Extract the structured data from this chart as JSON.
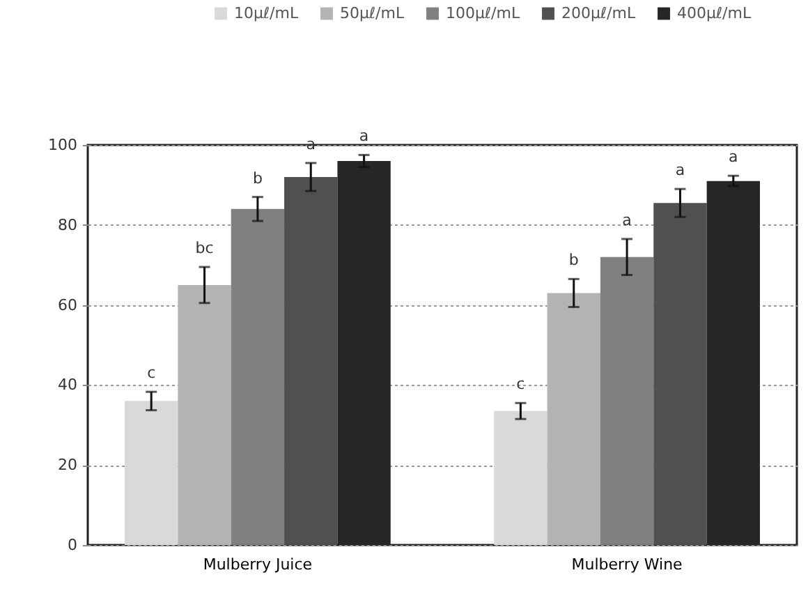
{
  "chart_data": {
    "type": "bar",
    "categories": [
      "Mulberry  Juice",
      "Mulberry  Wine"
    ],
    "series": [
      {
        "name": "10μℓ/mL",
        "color": "#d9d9d9",
        "values": [
          36,
          33.5
        ],
        "errors": [
          2.3,
          2
        ],
        "value_labels": [
          "c",
          "c"
        ]
      },
      {
        "name": "50μℓ/mL",
        "color": "#b3b3b3",
        "values": [
          65,
          63
        ],
        "errors": [
          4.5,
          3.5
        ],
        "value_labels": [
          "bc",
          "b"
        ]
      },
      {
        "name": "100μℓ/mL",
        "color": "#808080",
        "values": [
          84,
          72
        ],
        "errors": [
          3,
          4.5
        ],
        "value_labels": [
          "b",
          "a"
        ]
      },
      {
        "name": "200μℓ/mL",
        "color": "#505050",
        "values": [
          92,
          85.5
        ],
        "errors": [
          3.5,
          3.5
        ],
        "value_labels": [
          "a",
          "a"
        ]
      },
      {
        "name": "400μℓ/mL",
        "color": "#262626",
        "values": [
          96,
          91
        ],
        "errors": [
          1.5,
          1.3
        ],
        "value_labels": [
          "a",
          "a"
        ]
      }
    ],
    "ylim": [
      0,
      100
    ],
    "yticks": [
      0,
      20,
      40,
      60,
      80,
      100
    ],
    "grid": "y",
    "legend": "top"
  }
}
